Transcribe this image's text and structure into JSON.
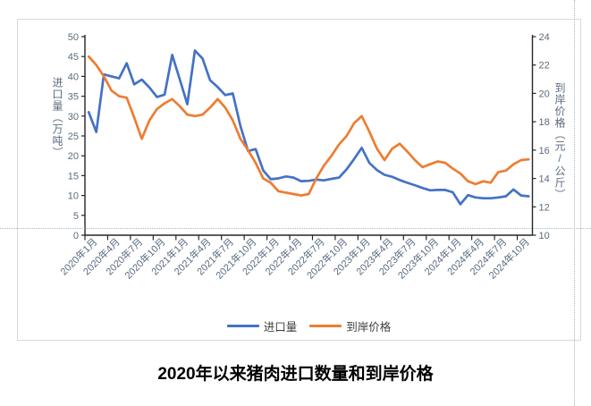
{
  "chart_data": {
    "type": "line",
    "title": "2020年以来猪肉进口数量和到岸价格",
    "x_tick_labels": [
      "2020年1月",
      "2020年4月",
      "2020年7月",
      "2020年10月",
      "2021年1月",
      "2021年4月",
      "2021年7月",
      "2021年10月",
      "2022年1月",
      "2022年4月",
      "2022年7月",
      "2022年10月",
      "2023年1月",
      "2023年4月",
      "2023年7月",
      "2023年10月",
      "2024年1月",
      "2024年4月",
      "2024年7月",
      "2024年10月"
    ],
    "x_range_note": "monthly data, 2020-01 through 2024-11",
    "left_axis": {
      "label": "进口量（万吨）",
      "min": 0,
      "max": 50,
      "step": 5,
      "ticks": [
        "0",
        "5",
        "10",
        "15",
        "20",
        "25",
        "30",
        "35",
        "40",
        "45",
        "50"
      ]
    },
    "right_axis": {
      "label": "到岸价格（元/公斤）",
      "min": 10,
      "max": 24,
      "step": 2,
      "ticks": [
        "10",
        "12",
        "14",
        "16",
        "18",
        "20",
        "22",
        "24"
      ]
    },
    "grid": "off",
    "legend_position": "bottom-center",
    "series": [
      {
        "name": "进口量",
        "axis": "left",
        "color": "#4472C4",
        "values": [
          31.0,
          26.0,
          40.5,
          40.0,
          39.5,
          43.3,
          38.0,
          39.2,
          37.2,
          34.8,
          35.4,
          45.4,
          39.3,
          33.0,
          46.5,
          44.5,
          39.0,
          37.3,
          35.3,
          35.7,
          27.5,
          21.2,
          21.7,
          16.3,
          14.1,
          14.3,
          14.8,
          14.5,
          13.6,
          13.7,
          14.0,
          13.8,
          14.2,
          14.5,
          16.6,
          19.2,
          22.0,
          18.2,
          16.4,
          15.2,
          14.7,
          13.9,
          13.2,
          12.6,
          11.9,
          11.3,
          11.4,
          11.4,
          10.8,
          7.8,
          10.1,
          9.5,
          9.3,
          9.3,
          9.5,
          9.8,
          11.5,
          10.0,
          9.8
        ]
      },
      {
        "name": "到岸价格",
        "axis": "right",
        "color": "#ED7D31",
        "values": [
          22.6,
          22.0,
          21.2,
          20.2,
          19.8,
          19.7,
          18.3,
          16.8,
          18.1,
          18.9,
          19.3,
          19.6,
          19.1,
          18.5,
          18.4,
          18.5,
          19.0,
          19.6,
          19.0,
          18.1,
          16.8,
          16.0,
          15.1,
          14.0,
          13.7,
          13.1,
          13.0,
          12.9,
          12.8,
          12.9,
          14.0,
          14.9,
          15.6,
          16.4,
          17.0,
          17.9,
          18.4,
          17.3,
          16.1,
          15.3,
          16.1,
          16.45,
          15.9,
          15.3,
          14.8,
          15.0,
          15.2,
          15.1,
          14.7,
          14.35,
          13.8,
          13.6,
          13.8,
          13.7,
          14.45,
          14.55,
          15.0,
          15.3,
          15.35
        ]
      }
    ],
    "colors": {
      "axis_line": "#262626",
      "tick_label": "#5a6b7f",
      "frame_border": "#d9d9d9",
      "separator_dotted": "#aeb4ba"
    }
  }
}
